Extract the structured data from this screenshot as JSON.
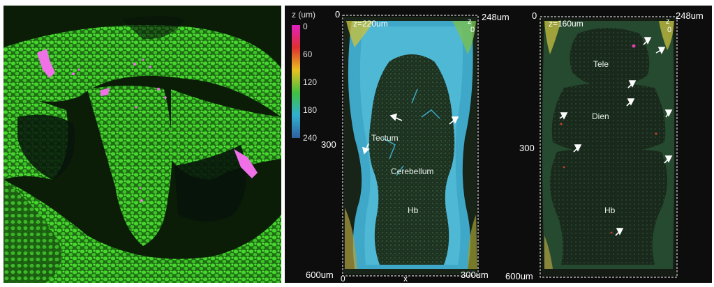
{
  "left_panel": {
    "description_colors": {
      "nuclei": "#3fcf2a",
      "background": "#0a1a06",
      "highlight": "#f070e8"
    }
  },
  "right_panel": {
    "colorbar": {
      "title": "z (um)",
      "ticks": [
        "0",
        "60",
        "120",
        "180",
        "240"
      ],
      "colors": [
        "#e020c0",
        "#e03030",
        "#e8c020",
        "#40c040",
        "#30b0d0",
        "#3060a0"
      ]
    },
    "brain1": {
      "z_label": "z=220um",
      "corner_z": "z",
      "top_left": "0",
      "top_right_num": "248um",
      "top_right_zero": "0",
      "bottom_left": "600um",
      "bottom_zero": "0",
      "x_label": "x",
      "bottom_right": "300um",
      "left_mid": "300",
      "regions": [
        "Tectum",
        "Cerebellum",
        "Hb"
      ]
    },
    "brain2": {
      "z_label": "z=160um",
      "corner_z": "z",
      "top_left": "0",
      "top_right_num": "248um",
      "top_right_zero": "0",
      "bottom_left": "600um",
      "left_mid": "300",
      "regions": [
        "Tele",
        "Dien",
        "Hb"
      ]
    }
  }
}
